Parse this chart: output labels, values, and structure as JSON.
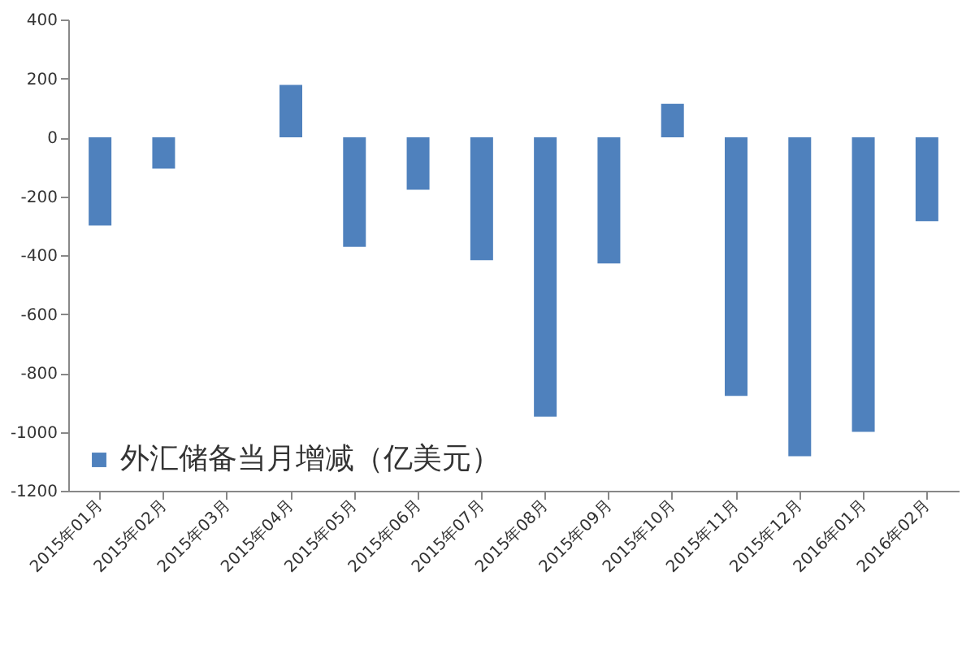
{
  "chart_data": {
    "type": "bar",
    "categories": [
      "2015年01月",
      "2015年02月",
      "2015年03月",
      "2015年04月",
      "2015年05月",
      "2015年06月",
      "2015年07月",
      "2015年08月",
      "2015年09月",
      "2015年10月",
      "2015年11月",
      "2015年12月",
      "2016年01月",
      "2016年02月"
    ],
    "series": [
      {
        "name": "外汇储备当月增减（亿美元）",
        "color": "#4f81bd",
        "values": [
          -299,
          -106,
          null,
          178,
          -372,
          -178,
          -417,
          -948,
          -428,
          114,
          -878,
          -1083,
          -1000,
          -285
        ]
      }
    ],
    "ylim": [
      -1200,
      400
    ],
    "yticks": [
      -1200,
      -1000,
      -800,
      -600,
      -400,
      -200,
      0,
      200,
      400
    ],
    "grid": false,
    "legend": "bottom left"
  }
}
